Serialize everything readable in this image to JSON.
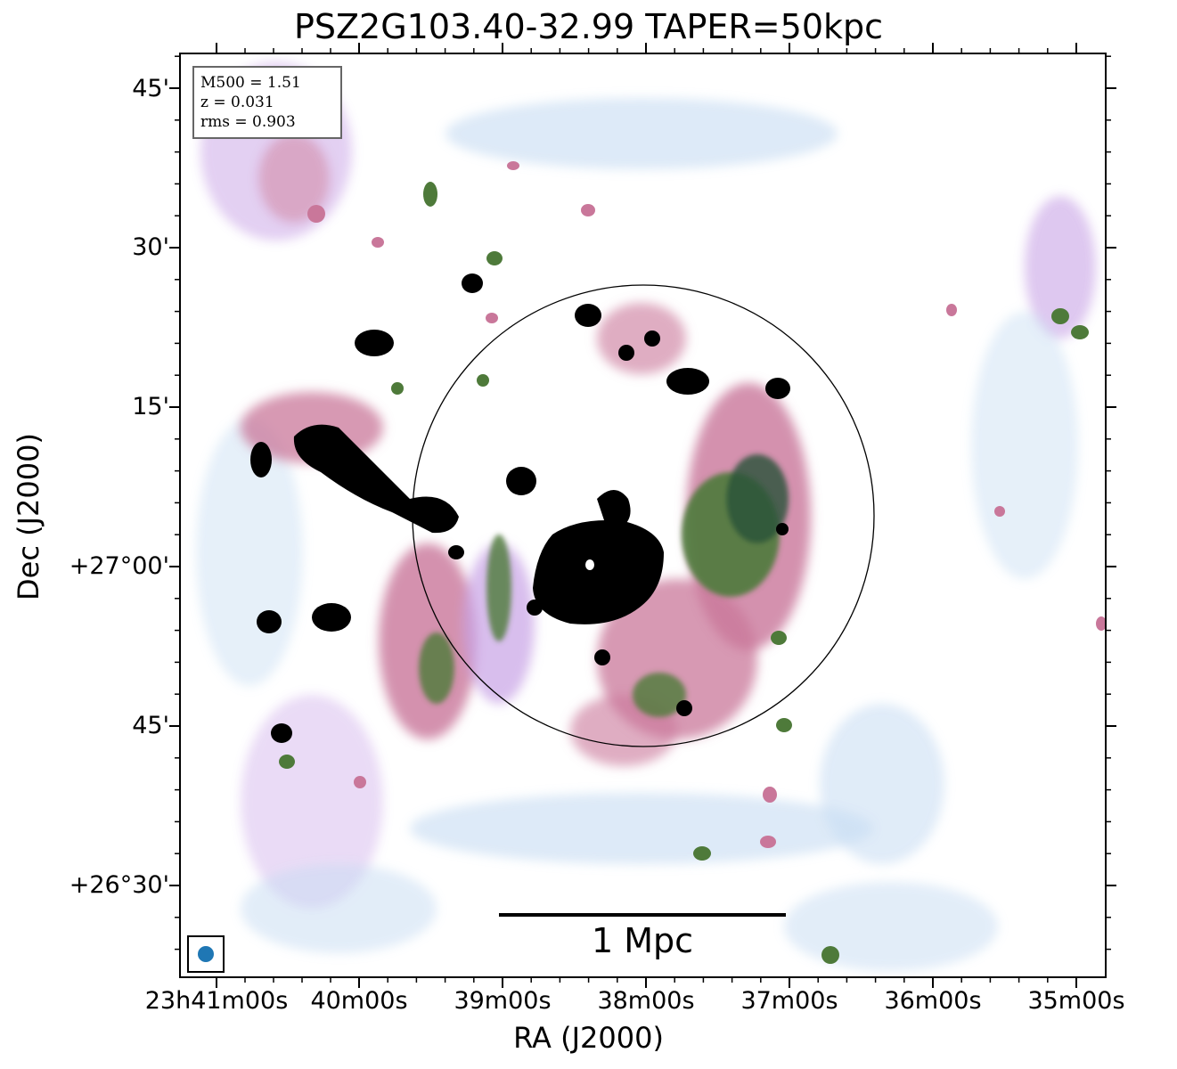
{
  "title": "PSZ2G103.40-32.99 TAPER=50kpc",
  "axes": {
    "xlabel": "RA (J2000)",
    "ylabel": "Dec (J2000)",
    "x_ticks": [
      "23h41m00s",
      "40m00s",
      "39m00s",
      "38m00s",
      "37m00s",
      "36m00s",
      "35m00s"
    ],
    "y_ticks": [
      "45'",
      "30'",
      "15'",
      "+27°00'",
      "45'",
      "+26°30'"
    ]
  },
  "info": {
    "m500": "M500 = 1.51",
    "z": "z = 0.031",
    "rms": "rms = 0.903"
  },
  "scalebar_label": "1 Mpc",
  "colors": {
    "beam": "#1f77b4",
    "emission_faint": "#bcd6f0",
    "emission_low": "#c8a2e6",
    "emission_mid": "#c9779a",
    "emission_high": "#4e7a3a",
    "emission_peak": "#000000"
  }
}
